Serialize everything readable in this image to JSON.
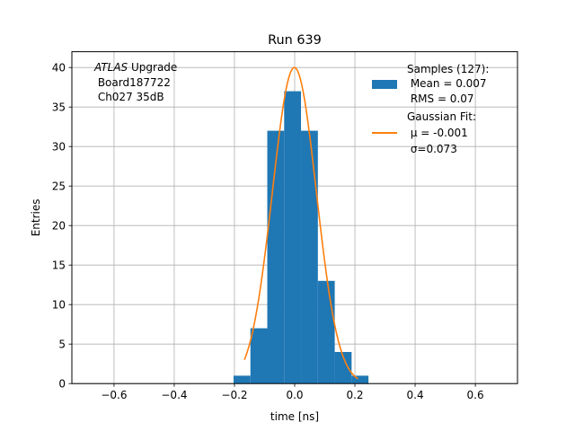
{
  "chart_data": {
    "type": "bar",
    "title": "Run 639",
    "xlabel": "time [ns]",
    "ylabel": "Entries",
    "xlim": [
      -0.74,
      0.74
    ],
    "ylim": [
      0,
      42
    ],
    "xticks": [
      -0.6,
      -0.4,
      -0.2,
      0.0,
      0.2,
      0.4,
      0.6
    ],
    "xtick_labels": [
      "−0.6",
      "−0.4",
      "−0.2",
      "0.0",
      "0.2",
      "0.4",
      "0.6"
    ],
    "yticks": [
      0,
      5,
      10,
      15,
      20,
      25,
      30,
      35,
      40
    ],
    "ytick_labels": [
      "0",
      "5",
      "10",
      "15",
      "20",
      "25",
      "30",
      "35",
      "40"
    ],
    "grid": true,
    "annotation": {
      "italic": "ATLAS",
      "line1_rest": " Upgrade",
      "line2": " Board187722",
      "line3": " Ch027 35dB"
    },
    "histogram": {
      "name": "Samples (127):",
      "color": "#1f77b4",
      "bin_edges": [
        -0.203,
        -0.147,
        -0.091,
        -0.035,
        0.021,
        0.077,
        0.133,
        0.189,
        0.245
      ],
      "counts": [
        1,
        7,
        32,
        37,
        32,
        13,
        4,
        1
      ]
    },
    "fit": {
      "name": "Gaussian Fit:",
      "color": "#ff7f0e",
      "amplitude": 40,
      "mu": -0.001,
      "sigma": 0.073,
      "x_range": [
        -0.167,
        0.21
      ]
    },
    "legend": {
      "position": "top-right",
      "hist_lines": [
        "Samples (127):",
        " Mean = 0.007",
        " RMS = 0.07"
      ],
      "fit_lines": [
        "Gaussian Fit:",
        " μ = -0.001",
        " σ=0.073"
      ]
    }
  }
}
